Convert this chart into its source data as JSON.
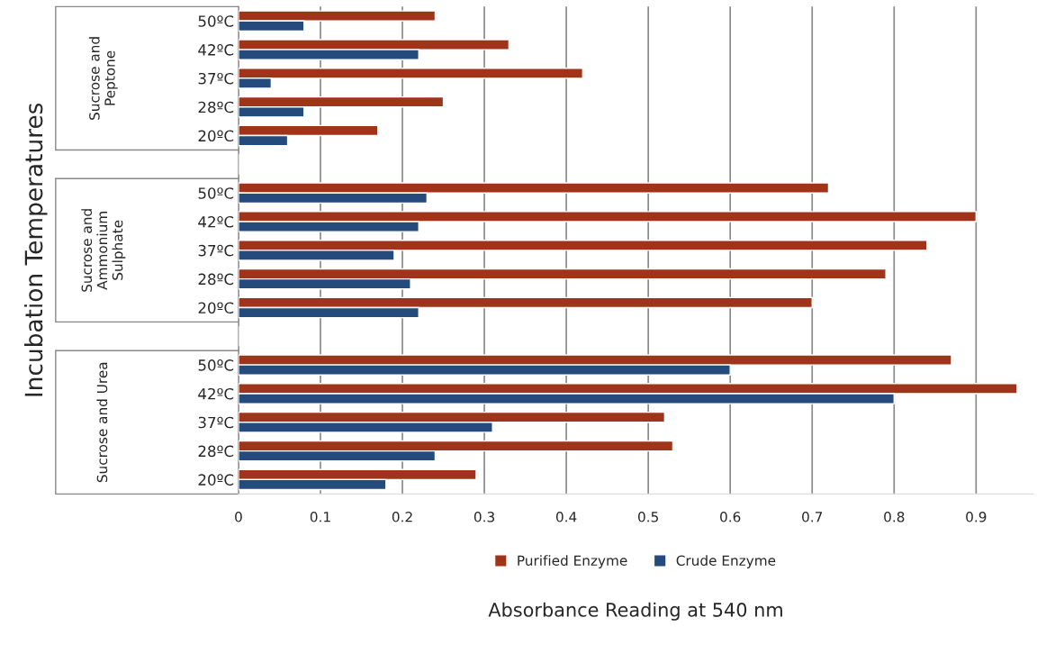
{
  "chart_data": {
    "type": "bar",
    "orientation": "horizontal",
    "xlabel": "Absorbance Reading at 540 nm",
    "categories": [
      "50ºC",
      "42ºC",
      "37ºC",
      "28ºC",
      "20ºC",
      null,
      "50ºC",
      "42ºC",
      "37ºC",
      "28ºC",
      "20ºC",
      null,
      "50ºC",
      "42ºC",
      "37ºC",
      "28ºC",
      "20ºC"
    ],
    "series": [
      {
        "name": "Purified Enzyme",
        "color": "#a0341b",
        "values": [
          0.24,
          0.33,
          0.42,
          0.25,
          0.17,
          null,
          0.72,
          0.9,
          0.84,
          0.79,
          0.7,
          null,
          0.87,
          0.95,
          0.52,
          0.53,
          0.29
        ]
      },
      {
        "name": "Crude Enzyme",
        "color": "#254a7c",
        "values": [
          0.08,
          0.22,
          0.04,
          0.08,
          0.06,
          null,
          0.23,
          0.22,
          0.19,
          0.21,
          0.22,
          null,
          0.6,
          0.8,
          0.31,
          0.24,
          0.18
        ]
      }
    ],
    "annotations": [
      "Sucrose and\nPeptone",
      "Sucrose and\nAmmonium\nSulphate",
      "Sucrose and Urea",
      "Incubation Temperatures"
    ],
    "xlim": [
      0,
      0.97
    ],
    "xticks": [
      0,
      0.1,
      0.2,
      0.3,
      0.4,
      0.5,
      0.6,
      0.7,
      0.8,
      0.9
    ],
    "grid": "x",
    "legend": "bottom"
  }
}
